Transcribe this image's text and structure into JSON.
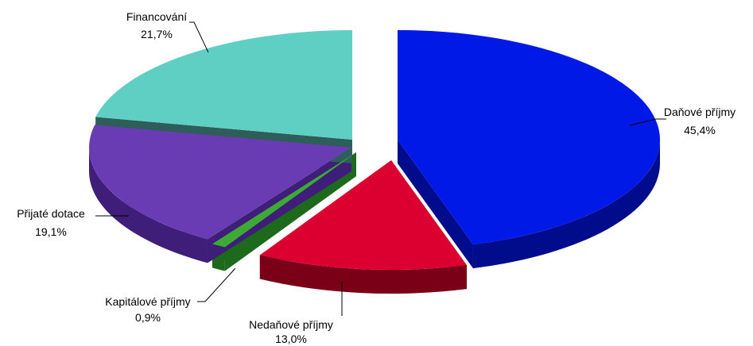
{
  "chart_data": {
    "type": "pie",
    "title": "",
    "style": "3d-exploded",
    "slices": [
      {
        "label": "Daňové příjmy",
        "value": 45.4,
        "value_text": "45,4%",
        "color": "#0019E6",
        "side_color": "#000C8C"
      },
      {
        "label": "Nedaňové příjmy",
        "value": 13.0,
        "value_text": "13,0%",
        "color": "#DC0030",
        "side_color": "#7A0018"
      },
      {
        "label": "Kapitálové příjmy",
        "value": 0.9,
        "value_text": "0,9%",
        "color": "#3DAA35",
        "side_color": "#1E6A1C"
      },
      {
        "label": "Přijaté dotace",
        "value": 19.1,
        "value_text": "19,1%",
        "color": "#6A3CB4",
        "side_color": "#3F1E7A"
      },
      {
        "label": "Financování",
        "value": 21.7,
        "value_text": "21,7%",
        "color": "#5FCEC3",
        "side_color": "#2E5E59"
      }
    ]
  }
}
